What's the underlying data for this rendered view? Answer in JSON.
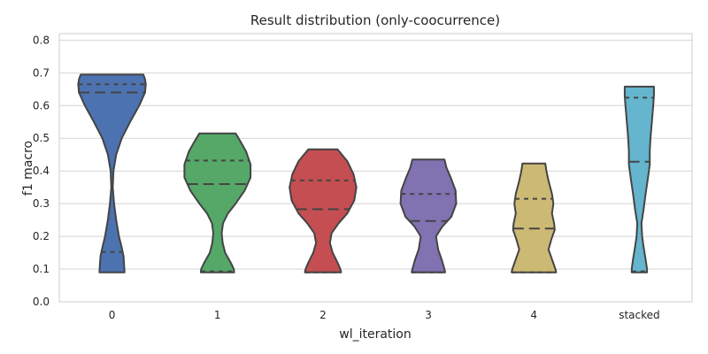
{
  "chart_data": {
    "type": "violin",
    "title": "Result distribution (only-coocurrence)",
    "xlabel": "wl_iteration",
    "ylabel": "f1 macro",
    "ylim": [
      0.0,
      0.82
    ],
    "yticks": [
      0.0,
      0.1,
      0.2,
      0.3,
      0.4,
      0.5,
      0.6,
      0.7,
      0.8
    ],
    "ytick_labels": [
      "0.0",
      "0.1",
      "0.2",
      "0.3",
      "0.4",
      "0.5",
      "0.6",
      "0.7",
      "0.8"
    ],
    "grid": true,
    "categories": [
      "0",
      "1",
      "2",
      "3",
      "4",
      "stacked"
    ],
    "series": [
      {
        "category": "0",
        "color": "#4c72b0",
        "min": 0.09,
        "max": 0.695,
        "quartiles": [
          0.152,
          0.64,
          0.665
        ],
        "density": [
          [
            0.09,
            0.36
          ],
          [
            0.11,
            0.35
          ],
          [
            0.14,
            0.33
          ],
          [
            0.17,
            0.27
          ],
          [
            0.2,
            0.2
          ],
          [
            0.25,
            0.12
          ],
          [
            0.3,
            0.06
          ],
          [
            0.35,
            0.02
          ],
          [
            0.4,
            0.04
          ],
          [
            0.45,
            0.12
          ],
          [
            0.5,
            0.28
          ],
          [
            0.55,
            0.52
          ],
          [
            0.6,
            0.78
          ],
          [
            0.64,
            0.95
          ],
          [
            0.665,
            0.97
          ],
          [
            0.68,
            0.95
          ],
          [
            0.695,
            0.9
          ]
        ]
      },
      {
        "category": "1",
        "color": "#55a868",
        "min": 0.09,
        "max": 0.515,
        "quartiles": [
          0.093,
          0.36,
          0.432
        ],
        "density": [
          [
            0.09,
            0.48
          ],
          [
            0.1,
            0.47
          ],
          [
            0.12,
            0.38
          ],
          [
            0.15,
            0.22
          ],
          [
            0.18,
            0.15
          ],
          [
            0.21,
            0.12
          ],
          [
            0.24,
            0.16
          ],
          [
            0.27,
            0.3
          ],
          [
            0.3,
            0.52
          ],
          [
            0.34,
            0.78
          ],
          [
            0.38,
            0.95
          ],
          [
            0.42,
            0.95
          ],
          [
            0.46,
            0.82
          ],
          [
            0.49,
            0.66
          ],
          [
            0.515,
            0.52
          ]
        ]
      },
      {
        "category": "2",
        "color": "#c44e52",
        "min": 0.09,
        "max": 0.466,
        "quartiles": [
          0.09,
          0.283,
          0.371
        ],
        "density": [
          [
            0.09,
            0.52
          ],
          [
            0.1,
            0.5
          ],
          [
            0.12,
            0.42
          ],
          [
            0.15,
            0.28
          ],
          [
            0.18,
            0.2
          ],
          [
            0.21,
            0.25
          ],
          [
            0.24,
            0.45
          ],
          [
            0.27,
            0.7
          ],
          [
            0.31,
            0.9
          ],
          [
            0.35,
            0.96
          ],
          [
            0.39,
            0.88
          ],
          [
            0.43,
            0.7
          ],
          [
            0.466,
            0.42
          ]
        ]
      },
      {
        "category": "3",
        "color": "#8172b2",
        "min": 0.09,
        "max": 0.435,
        "quartiles": [
          0.09,
          0.247,
          0.33
        ],
        "density": [
          [
            0.09,
            0.48
          ],
          [
            0.1,
            0.46
          ],
          [
            0.13,
            0.38
          ],
          [
            0.16,
            0.28
          ],
          [
            0.2,
            0.22
          ],
          [
            0.23,
            0.4
          ],
          [
            0.26,
            0.66
          ],
          [
            0.3,
            0.8
          ],
          [
            0.34,
            0.78
          ],
          [
            0.38,
            0.64
          ],
          [
            0.41,
            0.52
          ],
          [
            0.435,
            0.46
          ]
        ]
      },
      {
        "category": "4",
        "color": "#ccb974",
        "min": 0.09,
        "max": 0.423,
        "quartiles": [
          0.09,
          0.224,
          0.315
        ],
        "density": [
          [
            0.09,
            0.64
          ],
          [
            0.1,
            0.62
          ],
          [
            0.13,
            0.52
          ],
          [
            0.16,
            0.42
          ],
          [
            0.19,
            0.5
          ],
          [
            0.22,
            0.6
          ],
          [
            0.24,
            0.58
          ],
          [
            0.27,
            0.52
          ],
          [
            0.3,
            0.56
          ],
          [
            0.33,
            0.52
          ],
          [
            0.37,
            0.42
          ],
          [
            0.4,
            0.36
          ],
          [
            0.423,
            0.33
          ]
        ]
      },
      {
        "category": "stacked",
        "color": "#64b5cd",
        "min": 0.09,
        "max": 0.658,
        "quartiles": [
          0.093,
          0.428,
          0.624
        ],
        "density": [
          [
            0.09,
            0.22
          ],
          [
            0.1,
            0.22
          ],
          [
            0.13,
            0.18
          ],
          [
            0.17,
            0.12
          ],
          [
            0.2,
            0.08
          ],
          [
            0.24,
            0.06
          ],
          [
            0.28,
            0.12
          ],
          [
            0.33,
            0.18
          ],
          [
            0.38,
            0.25
          ],
          [
            0.42,
            0.3
          ],
          [
            0.46,
            0.3
          ],
          [
            0.5,
            0.32
          ],
          [
            0.55,
            0.36
          ],
          [
            0.6,
            0.4
          ],
          [
            0.63,
            0.42
          ],
          [
            0.658,
            0.42
          ]
        ]
      }
    ]
  }
}
